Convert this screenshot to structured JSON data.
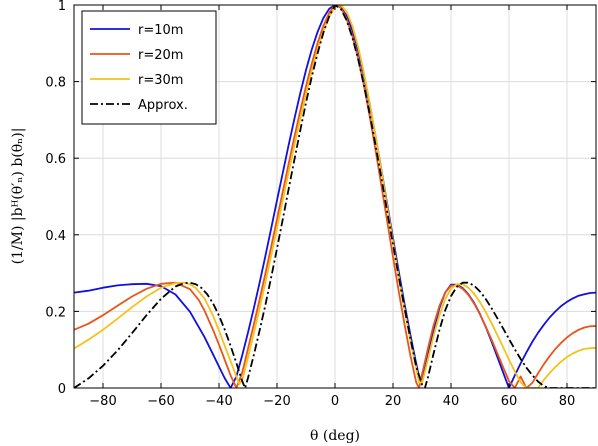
{
  "chart_data": {
    "type": "line",
    "xlabel": "θ (deg)",
    "ylabel": "(1/M) |bᴴ(θ′ₙ) b(θₙ)|",
    "xlim": [
      -90,
      90
    ],
    "ylim": [
      0,
      1
    ],
    "xticks": [
      -80,
      -60,
      -40,
      -20,
      0,
      20,
      40,
      60,
      80
    ],
    "yticks": [
      0,
      0.2,
      0.4,
      0.6,
      0.8,
      1
    ],
    "ytick_labels": [
      "0",
      "0.2",
      "0.4",
      "0.6",
      "0.8",
      "1"
    ],
    "grid": true,
    "legend_position": "top-left",
    "series": [
      {
        "name": "r=10m",
        "color": "#1010e0",
        "style": "solid",
        "width": 1.8,
        "x": [
          -90,
          -85,
          -80,
          -75,
          -70,
          -65,
          -60,
          -55,
          -50,
          -45,
          -42,
          -40,
          -38,
          -36,
          -34,
          -32,
          -30,
          -28,
          -26,
          -24,
          -22,
          -20,
          -18,
          -16,
          -14,
          -12,
          -10,
          -8,
          -6,
          -4,
          -2,
          0,
          2,
          4,
          6,
          8,
          10,
          12,
          14,
          16,
          18,
          20,
          22,
          24,
          26,
          28,
          29,
          30,
          32,
          34,
          36,
          38,
          40,
          42,
          44,
          46,
          48,
          50,
          52,
          54,
          56,
          58,
          60,
          62,
          64,
          66,
          68,
          70,
          72,
          74,
          76,
          78,
          80,
          82,
          84,
          86,
          88,
          90
        ],
        "y": [
          0.249,
          0.254,
          0.262,
          0.268,
          0.271,
          0.272,
          0.266,
          0.244,
          0.199,
          0.133,
          0.087,
          0.056,
          0.025,
          0.0,
          0.03,
          0.085,
          0.145,
          0.208,
          0.275,
          0.345,
          0.417,
          0.49,
          0.562,
          0.634,
          0.703,
          0.769,
          0.83,
          0.884,
          0.93,
          0.966,
          0.99,
          1.0,
          0.994,
          0.972,
          0.934,
          0.881,
          0.816,
          0.74,
          0.657,
          0.57,
          0.48,
          0.391,
          0.304,
          0.219,
          0.139,
          0.064,
          0.029,
          0.022,
          0.082,
          0.152,
          0.209,
          0.249,
          0.27,
          0.27,
          0.261,
          0.245,
          0.222,
          0.193,
          0.159,
          0.121,
          0.081,
          0.04,
          0.0,
          0.033,
          0.064,
          0.093,
          0.12,
          0.144,
          0.165,
          0.184,
          0.2,
          0.214,
          0.225,
          0.234,
          0.241,
          0.245,
          0.248,
          0.249
        ]
      },
      {
        "name": "r=20m",
        "color": "#e8551a",
        "style": "solid",
        "width": 1.8,
        "x": [
          -90,
          -85,
          -80,
          -75,
          -70,
          -65,
          -60,
          -55,
          -50,
          -47,
          -45,
          -42,
          -40,
          -38,
          -36,
          -34,
          -32,
          -30,
          -28,
          -26,
          -24,
          -22,
          -20,
          -18,
          -16,
          -14,
          -12,
          -10,
          -8,
          -6,
          -4,
          -2,
          0,
          2,
          4,
          6,
          8,
          10,
          12,
          14,
          16,
          18,
          20,
          22,
          24,
          26,
          28,
          29,
          30,
          32,
          34,
          36,
          38,
          40,
          42,
          44,
          46,
          48,
          50,
          52,
          54,
          56,
          58,
          60,
          62,
          64,
          66,
          68,
          70,
          72,
          74,
          76,
          78,
          80,
          82,
          84,
          86,
          88,
          90
        ],
        "y": [
          0.152,
          0.168,
          0.19,
          0.215,
          0.239,
          0.259,
          0.272,
          0.275,
          0.258,
          0.23,
          0.202,
          0.151,
          0.113,
          0.073,
          0.033,
          0.0,
          0.04,
          0.103,
          0.166,
          0.231,
          0.299,
          0.369,
          0.441,
          0.513,
          0.585,
          0.656,
          0.723,
          0.788,
          0.847,
          0.901,
          0.946,
          0.98,
          1.0,
          0.993,
          0.964,
          0.919,
          0.86,
          0.789,
          0.708,
          0.62,
          0.528,
          0.435,
          0.342,
          0.251,
          0.165,
          0.085,
          0.015,
          0.0,
          0.035,
          0.102,
          0.164,
          0.214,
          0.249,
          0.267,
          0.268,
          0.259,
          0.243,
          0.22,
          0.192,
          0.16,
          0.126,
          0.09,
          0.054,
          0.018,
          0.0,
          0.03,
          0.0,
          0.013,
          0.038,
          0.062,
          0.083,
          0.102,
          0.118,
          0.132,
          0.143,
          0.152,
          0.158,
          0.161,
          0.162
        ]
      },
      {
        "name": "r=30m",
        "color": "#f5c21a",
        "style": "solid",
        "width": 1.8,
        "x": [
          -90,
          -85,
          -80,
          -75,
          -70,
          -65,
          -60,
          -55,
          -52,
          -50,
          -48,
          -45,
          -42,
          -40,
          -38,
          -36,
          -34,
          -33,
          -32,
          -30,
          -28,
          -26,
          -24,
          -22,
          -20,
          -18,
          -16,
          -14,
          -12,
          -10,
          -8,
          -6,
          -4,
          -2,
          0,
          2,
          4,
          6,
          8,
          10,
          12,
          14,
          16,
          18,
          20,
          22,
          24,
          26,
          28,
          29,
          30,
          32,
          34,
          36,
          38,
          40,
          42,
          44,
          46,
          48,
          50,
          52,
          54,
          56,
          58,
          60,
          62,
          64,
          66,
          68,
          70,
          72,
          74,
          76,
          78,
          80,
          82,
          84,
          86,
          88,
          90
        ],
        "y": [
          0.103,
          0.126,
          0.152,
          0.181,
          0.211,
          0.239,
          0.262,
          0.274,
          0.275,
          0.271,
          0.261,
          0.234,
          0.188,
          0.15,
          0.11,
          0.07,
          0.03,
          0.01,
          0.021,
          0.08,
          0.143,
          0.208,
          0.276,
          0.346,
          0.418,
          0.491,
          0.563,
          0.634,
          0.703,
          0.768,
          0.829,
          0.884,
          0.932,
          0.97,
          0.995,
          1.0,
          0.983,
          0.945,
          0.89,
          0.822,
          0.744,
          0.658,
          0.567,
          0.474,
          0.381,
          0.29,
          0.204,
          0.124,
          0.052,
          0.015,
          0.012,
          0.073,
          0.136,
          0.19,
          0.232,
          0.259,
          0.271,
          0.271,
          0.262,
          0.246,
          0.224,
          0.198,
          0.169,
          0.138,
          0.106,
          0.074,
          0.043,
          0.015,
          0.0,
          0.0,
          0.0,
          0.021,
          0.039,
          0.055,
          0.069,
          0.081,
          0.09,
          0.097,
          0.102,
          0.104,
          0.105
        ]
      },
      {
        "name": "Approx.",
        "color": "#000000",
        "style": "dashdot",
        "width": 1.8,
        "x": [
          -90,
          -85,
          -80,
          -75,
          -70,
          -65,
          -60,
          -55,
          -52,
          -50,
          -48,
          -46,
          -44,
          -42,
          -40,
          -38,
          -36,
          -34,
          -32,
          -31,
          -30,
          -28,
          -26,
          -24,
          -22,
          -20,
          -18,
          -16,
          -14,
          -12,
          -10,
          -8,
          -6,
          -4,
          -2,
          0,
          2,
          4,
          6,
          8,
          10,
          12,
          14,
          16,
          18,
          20,
          22,
          24,
          26,
          28,
          30,
          31,
          32,
          34,
          36,
          38,
          40,
          42,
          44,
          46,
          48,
          50,
          52,
          54,
          56,
          58,
          60,
          62,
          64,
          66,
          68,
          70,
          72,
          74,
          76,
          78,
          80,
          82,
          84,
          86,
          88,
          90
        ],
        "y": [
          0.0,
          0.025,
          0.058,
          0.098,
          0.143,
          0.19,
          0.233,
          0.265,
          0.274,
          0.275,
          0.271,
          0.261,
          0.244,
          0.22,
          0.189,
          0.152,
          0.11,
          0.065,
          0.018,
          0.0,
          0.026,
          0.086,
          0.15,
          0.217,
          0.289,
          0.364,
          0.441,
          0.519,
          0.596,
          0.672,
          0.745,
          0.813,
          0.874,
          0.928,
          0.97,
          1.0,
          0.99,
          0.96,
          0.915,
          0.858,
          0.79,
          0.714,
          0.633,
          0.548,
          0.461,
          0.375,
          0.289,
          0.207,
          0.129,
          0.056,
          0.009,
          0.0,
          0.026,
          0.09,
          0.151,
          0.203,
          0.24,
          0.264,
          0.275,
          0.275,
          0.267,
          0.252,
          0.232,
          0.208,
          0.182,
          0.155,
          0.128,
          0.101,
          0.076,
          0.053,
          0.034,
          0.017,
          0.005,
          0.0,
          0.0,
          0.0,
          0.0,
          0.0,
          0.0,
          0.0,
          0.0,
          0.0
        ]
      }
    ]
  }
}
